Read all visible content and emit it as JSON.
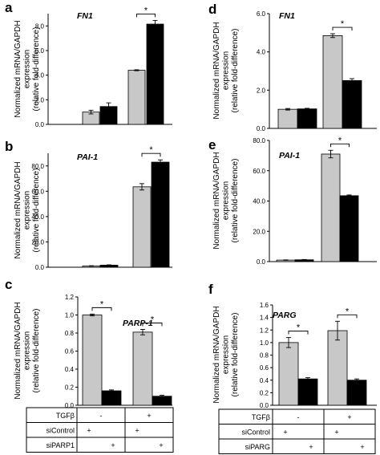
{
  "colors": {
    "gray": "#c8c8c8",
    "black": "#000000"
  },
  "chart_data": [
    {
      "id": "a",
      "type": "bar",
      "panel_label": "a",
      "gene": "FN1",
      "ylabel": [
        "Normalized mRNA/GAPDH",
        "expression",
        "(relative fold-difference)"
      ],
      "ylim": [
        0,
        9
      ],
      "yticks": [
        0,
        2,
        4,
        6,
        8
      ],
      "ytick_labels": [
        "0.0",
        "2.0",
        "4.0",
        "6.0",
        "8.0"
      ],
      "values": [
        1.0,
        1.45,
        4.4,
        8.15
      ],
      "errors": [
        0.15,
        0.3,
        0.04,
        0.3
      ],
      "significance": [
        {
          "bars": [
            2,
            3
          ],
          "label": "*"
        }
      ]
    },
    {
      "id": "b",
      "type": "bar",
      "panel_label": "b",
      "gene": "PAI-1",
      "ylabel": [
        "Normalized mRNA/GAPDH",
        "expression",
        "(relative fold-difference)"
      ],
      "ylim": [
        0,
        90
      ],
      "yticks": [
        0,
        20,
        40,
        60,
        80
      ],
      "ytick_labels": [
        "0.0",
        "20.0",
        "40.0",
        "60.0",
        "80.0"
      ],
      "values": [
        1.0,
        1.6,
        63.5,
        83.0
      ],
      "errors": [
        0.2,
        0.3,
        2.5,
        1.8
      ],
      "significance": [
        {
          "bars": [
            2,
            3
          ],
          "label": "*"
        }
      ]
    },
    {
      "id": "c",
      "type": "bar",
      "panel_label": "c",
      "gene": "PARP-1",
      "ylabel": [
        "Normalized mRNA/GAPDH",
        "expression",
        "(relative fold-difference)"
      ],
      "ylim": [
        0,
        1.2
      ],
      "yticks": [
        0,
        0.2,
        0.4,
        0.6,
        0.8,
        1.0,
        1.2
      ],
      "ytick_labels": [
        "0.0",
        "0.2",
        "0.4",
        "0.6",
        "0.8",
        "1.0",
        "1.2"
      ],
      "values": [
        1.0,
        0.16,
        0.81,
        0.1
      ],
      "errors": [
        0.01,
        0.01,
        0.03,
        0.01
      ],
      "significance": [
        {
          "bars": [
            0,
            1
          ],
          "label": "*"
        },
        {
          "bars": [
            2,
            3
          ],
          "label": "*"
        }
      ]
    },
    {
      "id": "d",
      "type": "bar",
      "panel_label": "d",
      "gene": "FN1",
      "ylabel": [
        "Normalized mRNA/GAPDH",
        "expression",
        "(relative fold-difference)"
      ],
      "ylim": [
        0,
        6
      ],
      "yticks": [
        0,
        2,
        4,
        6
      ],
      "ytick_labels": [
        "0.0",
        "2.0",
        "4.0",
        "6.0"
      ],
      "values": [
        1.0,
        1.02,
        4.85,
        2.5
      ],
      "errors": [
        0.04,
        0.03,
        0.1,
        0.1
      ],
      "significance": [
        {
          "bars": [
            2,
            3
          ],
          "label": "*"
        }
      ]
    },
    {
      "id": "e",
      "type": "bar",
      "panel_label": "e",
      "gene": "PAI-1",
      "ylabel": [
        "Normalized mRNA/GAPDH",
        "expression",
        "(relative fold-difference)"
      ],
      "ylim": [
        0,
        80
      ],
      "yticks": [
        0,
        20,
        40,
        60,
        80
      ],
      "ytick_labels": [
        "0.0",
        "20.0",
        "40.0",
        "60.0",
        "80.0"
      ],
      "values": [
        1.0,
        1.2,
        71.0,
        43.5
      ],
      "errors": [
        0.15,
        0.2,
        2.5,
        0.5
      ],
      "significance": [
        {
          "bars": [
            2,
            3
          ],
          "label": "*"
        }
      ]
    },
    {
      "id": "f",
      "type": "bar",
      "panel_label": "f",
      "gene": "PARG",
      "ylabel": [
        "Normalized mRNA/GAPDH",
        "expression",
        "(relative fold-difference)"
      ],
      "ylim": [
        0,
        1.6
      ],
      "yticks": [
        0,
        0.2,
        0.4,
        0.6,
        0.8,
        1.0,
        1.2,
        1.4,
        1.6
      ],
      "ytick_labels": [
        "0.0",
        "0.2",
        "0.4",
        "0.6",
        "0.8",
        "1.0",
        "1.2",
        "1.4",
        "1.6"
      ],
      "values": [
        1.0,
        0.42,
        1.19,
        0.4
      ],
      "errors": [
        0.08,
        0.02,
        0.15,
        0.02
      ],
      "significance": [
        {
          "bars": [
            0,
            1
          ],
          "label": "*"
        },
        {
          "bars": [
            2,
            3
          ],
          "label": "*"
        }
      ]
    }
  ],
  "tables": [
    {
      "id": "left",
      "rows": [
        {
          "label": "TGFβ",
          "cells": [
            "-",
            "+"
          ],
          "merged": true
        },
        {
          "label": "siControl",
          "cells": [
            "+",
            "",
            "+",
            ""
          ]
        },
        {
          "label": "siPARP1",
          "cells": [
            "",
            "+",
            "",
            "+"
          ]
        }
      ]
    },
    {
      "id": "right",
      "rows": [
        {
          "label": "TGFβ",
          "cells": [
            "-",
            "+"
          ],
          "merged": true
        },
        {
          "label": "siControl",
          "cells": [
            "+",
            "",
            "+",
            ""
          ]
        },
        {
          "label": "siPARG",
          "cells": [
            "",
            "+",
            "",
            "+"
          ]
        }
      ]
    }
  ]
}
